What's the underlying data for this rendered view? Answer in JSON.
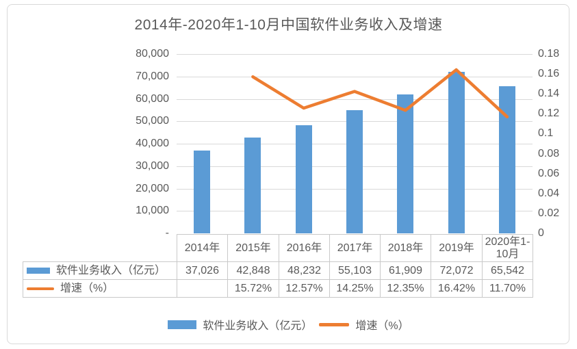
{
  "title": "2014年-2020年1-10月中国软件业务收入及增速",
  "colors": {
    "bar": "#5b9bd5",
    "line": "#ed7d31",
    "gridline": "#d9d9d9",
    "text": "#595959",
    "table_border": "#c9c9c9"
  },
  "chart_data": {
    "type": "combo",
    "title": "2014年-2020年1-10月中国软件业务收入及增速",
    "categories": [
      "2014年",
      "2015年",
      "2016年",
      "2017年",
      "2018年",
      "2019年",
      "2020年1-10月"
    ],
    "series": [
      {
        "name": "软件业务收入（亿元）",
        "type": "bar",
        "axis": "left",
        "color": "#5b9bd5",
        "values": [
          37026,
          42848,
          48232,
          55103,
          61909,
          72072,
          65542
        ],
        "labels": [
          "37,026",
          "42,848",
          "48,232",
          "55,103",
          "61,909",
          "72,072",
          "65,542"
        ]
      },
      {
        "name": "增速（%）",
        "type": "line",
        "axis": "right",
        "color": "#ed7d31",
        "values": [
          null,
          0.1572,
          0.1257,
          0.1425,
          0.1235,
          0.1642,
          0.117
        ],
        "labels": [
          "",
          "15.72%",
          "12.57%",
          "14.25%",
          "12.35%",
          "16.42%",
          "11.70%"
        ]
      }
    ],
    "left_axis": {
      "min": 0,
      "max": 80000,
      "tick_step": 10000,
      "tick_labels_top_to_bottom": [
        "80,000",
        "70,000",
        "60,000",
        "50,000",
        "40,000",
        "30,000",
        "20,000",
        "10,000",
        "-"
      ]
    },
    "right_axis": {
      "min": 0,
      "max": 0.18,
      "tick_step": 0.02,
      "tick_labels_top_to_bottom": [
        "0.18",
        "0.16",
        "0.14",
        "0.12",
        "0.1",
        "0.08",
        "0.06",
        "0.04",
        "0.02",
        "0"
      ]
    },
    "grid": "horizontal",
    "legend_position": "bottom"
  },
  "table": {
    "column_headers": [
      "2014年",
      "2015年",
      "2016年",
      "2017年",
      "2018年",
      "2019年",
      "2020年1-10月"
    ],
    "rows": [
      {
        "label": "软件业务收入（亿元）",
        "swatch": "bar",
        "cells": [
          "37,026",
          "42,848",
          "48,232",
          "55,103",
          "61,909",
          "72,072",
          "65,542"
        ]
      },
      {
        "label": "增速（%）",
        "swatch": "line",
        "cells": [
          "",
          "15.72%",
          "12.57%",
          "14.25%",
          "12.35%",
          "16.42%",
          "11.70%"
        ]
      }
    ]
  },
  "legend": {
    "items": [
      {
        "label": "软件业务收入（亿元）",
        "swatch": "bar"
      },
      {
        "label": "增速（%）",
        "swatch": "line"
      }
    ]
  }
}
